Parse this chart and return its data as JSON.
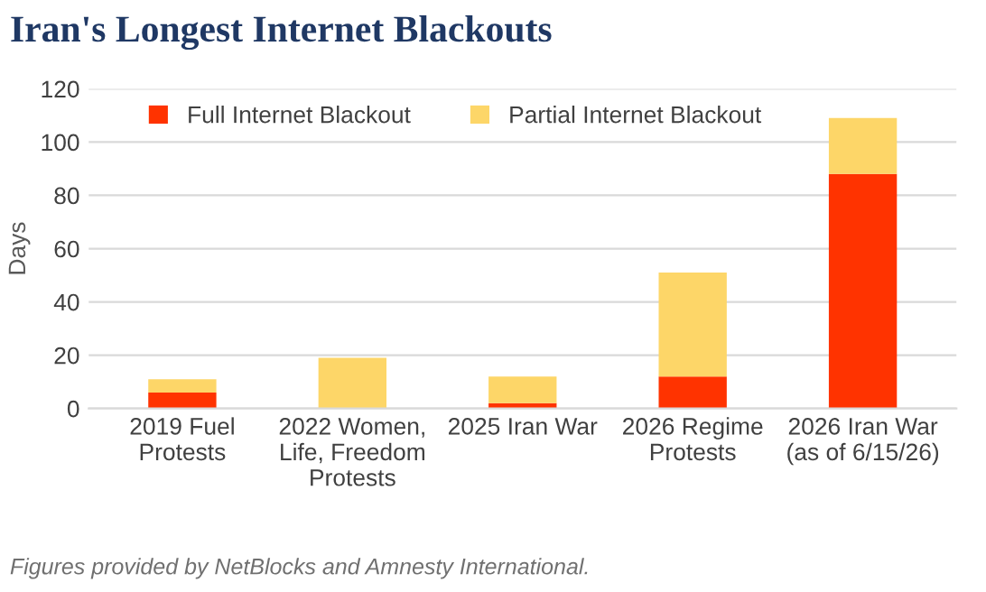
{
  "chart_data": {
    "type": "bar",
    "title": "Iran's Longest Internet Blackouts",
    "ylabel": "Days",
    "categories": [
      "2019 Fuel\nProtests",
      "2022 Women,\nLife, Freedom\nProtests",
      "2025 Iran War",
      "2026 Regime\nProtests",
      "2026 Iran War\n(as of 6/15/26)"
    ],
    "series": [
      {
        "name": "Full Internet Blackout",
        "color": "#ff3300",
        "values": [
          6,
          0,
          2,
          12,
          88
        ]
      },
      {
        "name": "Partial Internet Blackout",
        "color": "#fdd668",
        "values": [
          5,
          19,
          10,
          39,
          21
        ]
      }
    ],
    "stacked": true,
    "ylim": [
      0,
      120
    ],
    "yticks": [
      0,
      20,
      40,
      60,
      80,
      100,
      120
    ],
    "grid": "y",
    "legend": "top left",
    "annotations": [
      "Figures provided by NetBlocks and Amnesty International."
    ]
  }
}
